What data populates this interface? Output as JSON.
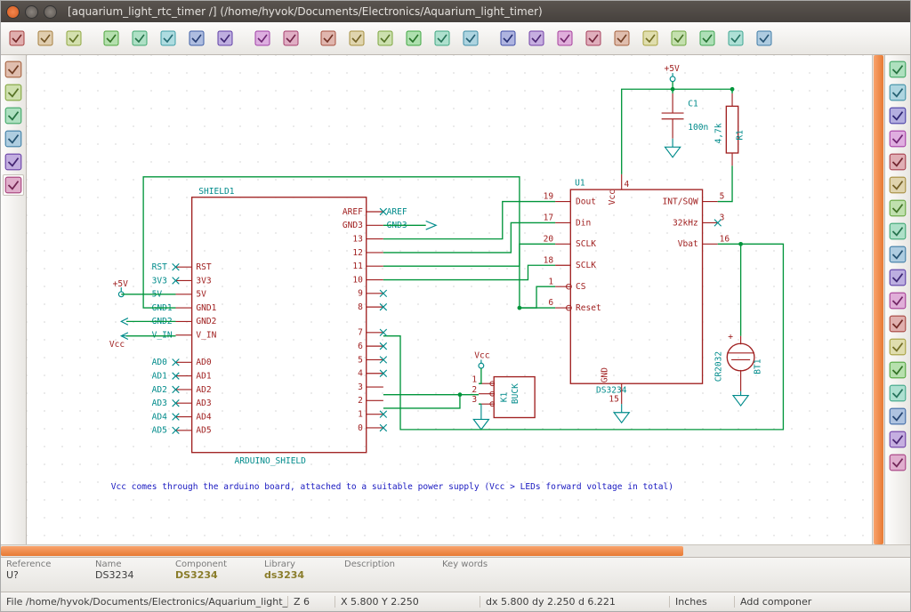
{
  "title": "[aquarium_light_rtc_timer /] (/home/hyvok/Documents/Electronics/Aquarium_light_timer)",
  "top_toolbar_icons": [
    "new-schematic",
    "open",
    "save",
    "page-settings",
    "print",
    "cut",
    "copy",
    "paste",
    "undo",
    "redo",
    "find",
    "zoom-fit",
    "zoom-in",
    "zoom-out",
    "zoom-redraw",
    "zoom-region",
    "hierarchy",
    "library-editor",
    "library-browser",
    "annotate",
    "erc",
    "netlist",
    "create-bom",
    "footprint-assign",
    "pcb-update",
    "back-import"
  ],
  "left_toolbar_icons": [
    "grid",
    "inches",
    "mm",
    "cursor-shape",
    "hidden-pins",
    "bus-direction"
  ],
  "right_toolbar_icons": [
    "select",
    "highlight-net",
    "component",
    "power-port",
    "wire",
    "bus",
    "wire-entry",
    "bus-entry",
    "no-connect",
    "junction",
    "label",
    "global-label",
    "hier-label",
    "hier-sheet",
    "import-sheet",
    "text",
    "image",
    "delete"
  ],
  "info_header": {
    "ref": "Reference",
    "name": "Name",
    "comp": "Component",
    "lib": "Library",
    "desc": "Description",
    "kw": "Key words"
  },
  "info_values": {
    "ref": "U?",
    "name": "DS3234",
    "comp": "DS3234",
    "lib": "ds3234",
    "desc": "",
    "kw": ""
  },
  "status": {
    "file": "File /home/hyvok/Documents/Electronics/Aquarium_light_t",
    "z": "Z 6",
    "xy": "X 5.800  Y 2.250",
    "dxy": "dx 5.800  dy 2.250  d 6.221",
    "unit": "Inches",
    "msg": "Add componer"
  },
  "shield": {
    "ref": "SHIELD1",
    "type": "ARDUINO_SHIELD",
    "left_pins": [
      "RST",
      "3V3",
      "5V",
      "GND1",
      "GND2",
      "V_IN",
      "AD0",
      "AD1",
      "AD2",
      "AD3",
      "AD4",
      "AD5"
    ],
    "left_labels": [
      "RST",
      "3V3",
      "5V",
      "GND1",
      "GND2",
      "V_IN",
      "AD0",
      "AD1",
      "AD2",
      "AD3",
      "AD4",
      "AD5"
    ],
    "right_pins": [
      "AREF",
      "GND3",
      "13",
      "12",
      "11",
      "10",
      "9",
      "8",
      "7",
      "6",
      "5",
      "4",
      "3",
      "2",
      "1",
      "0"
    ],
    "right_labels": [
      "AREF",
      "GND3",
      "",
      "",
      "",
      "",
      "",
      "",
      "",
      "",
      "",
      "",
      "",
      "",
      "",
      ""
    ]
  },
  "u1": {
    "ref": "U1",
    "type": "DS3234",
    "left_pins": [
      [
        "19",
        "Dout"
      ],
      [
        "17",
        "Din"
      ],
      [
        "20",
        "SCLK"
      ],
      [
        "18",
        "SCLK"
      ],
      [
        "1",
        "CS"
      ],
      [
        "6",
        "Reset"
      ]
    ],
    "right_pins": [
      [
        "5",
        "INT/SQW"
      ],
      [
        "3",
        "32kHz"
      ],
      [
        "16",
        "Vbat"
      ]
    ],
    "top": [
      "Vcc",
      "4"
    ],
    "bottom": [
      "GND",
      "15"
    ]
  },
  "k1": {
    "ref": "K1",
    "type": "BUCK",
    "pins": [
      "1",
      "2",
      "3"
    ]
  },
  "c1": {
    "ref": "C1",
    "val": "100n"
  },
  "r1": {
    "ref": "R1",
    "val": "4,7k"
  },
  "bt1": {
    "ref": "BT1",
    "val": "CR2032"
  },
  "pwr_labels": {
    "p5v": "+5V",
    "vcc": "Vcc"
  },
  "note_text": "Vcc comes through the arduino board, attached to a suitable power supply (Vcc > LEDs forward voltage in total)",
  "colors": {
    "comp": "#a02020",
    "wire": "#00953b",
    "ref": "#008b8b",
    "note": "#1818c0",
    "grid": "#b0b0b0",
    "bg": "#ffffff"
  }
}
